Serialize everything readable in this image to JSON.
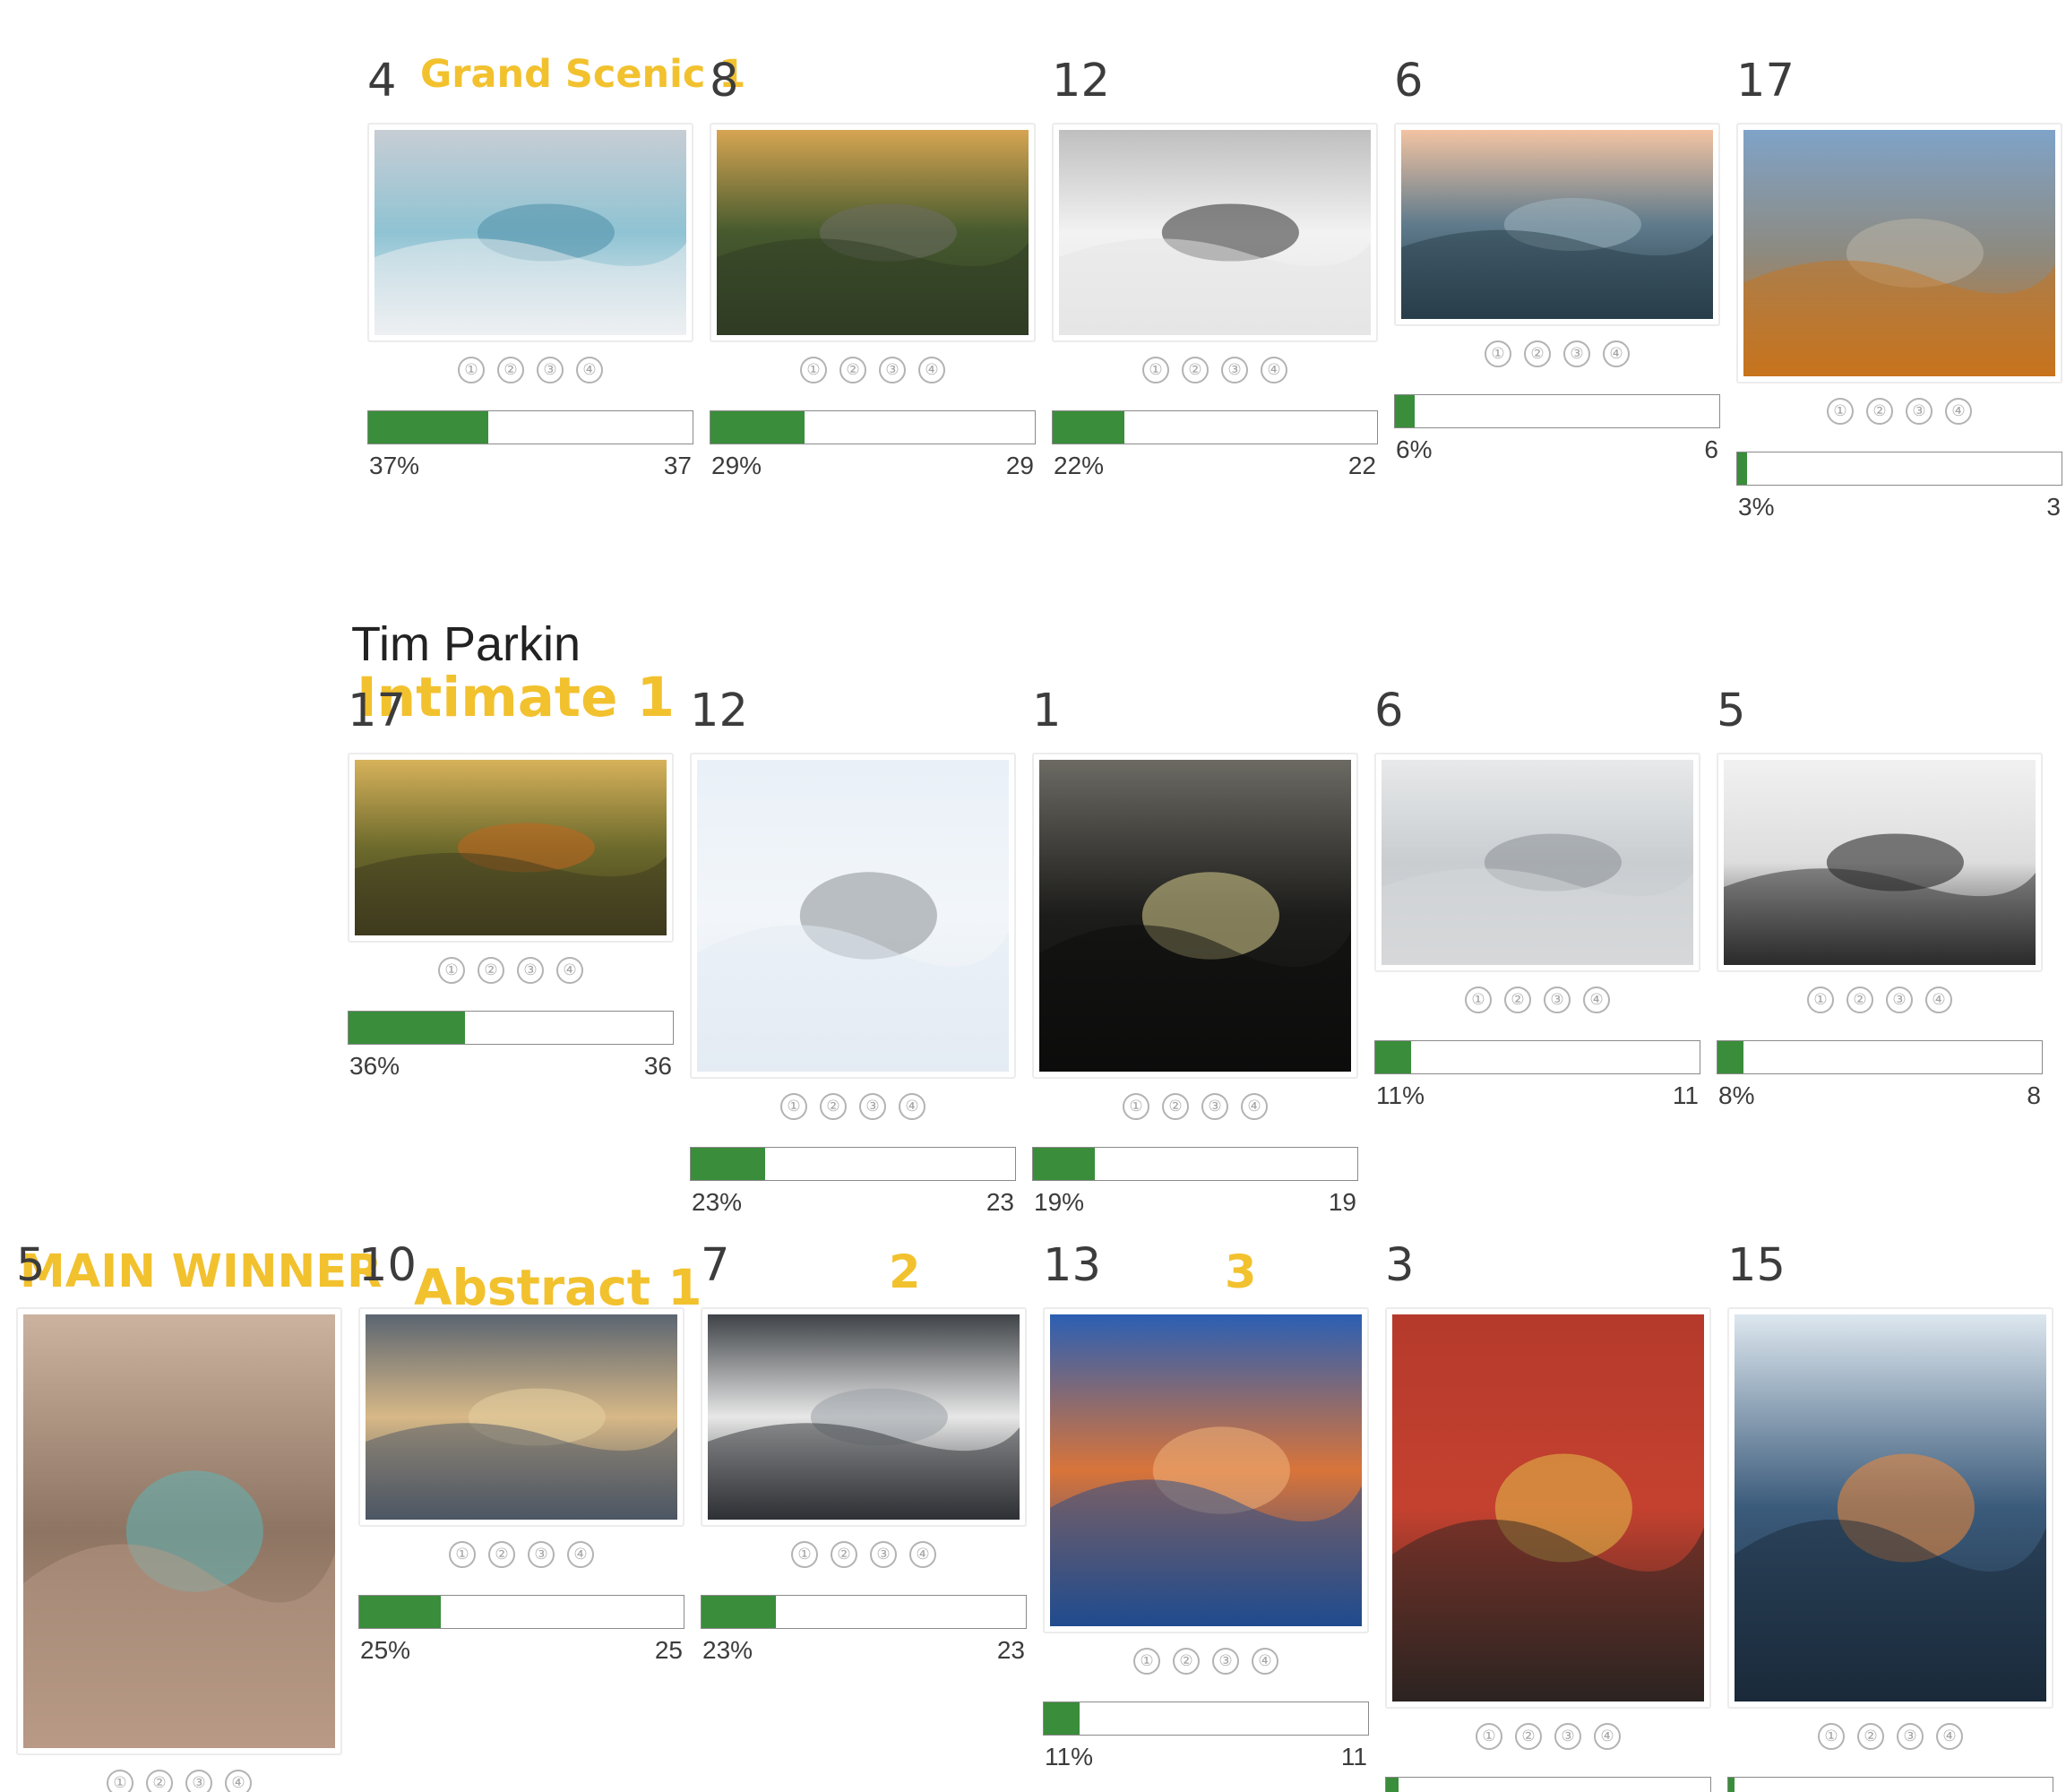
{
  "sections": [
    {
      "id": "grand-scenic",
      "award_label": "Grand Scenic 1",
      "photographer": "",
      "entries": [
        {
          "number": "4",
          "percent": "37%",
          "votes": "37",
          "share": 0.37,
          "photo": {
            "sky": "#c7cdd4",
            "mid": "#8fc3d3",
            "ground": "#eef0f2",
            "accent": "#4d8ea8",
            "caption": "glacier ice"
          }
        },
        {
          "number": "8",
          "percent": "29%",
          "votes": "29",
          "share": 0.29,
          "photo": {
            "sky": "#d6a552",
            "mid": "#465a2e",
            "ground": "#2f3b24",
            "accent": "#6e6e64",
            "caption": "mountain sunrise"
          }
        },
        {
          "number": "12",
          "percent": "22%",
          "votes": "22",
          "share": 0.22,
          "photo": {
            "sky": "#bfbfbf",
            "mid": "#f2f2f2",
            "ground": "#e6e6e6",
            "accent": "#2e2e2e",
            "caption": "snow valley"
          }
        },
        {
          "number": "6",
          "percent": "6%",
          "votes": "6",
          "share": 0.06,
          "photo": {
            "sky": "#f3c3a2",
            "mid": "#5f7b8c",
            "ground": "#283d4a",
            "accent": "#9fb4c0",
            "caption": "misty ridges"
          }
        },
        {
          "number": "17",
          "percent": "3%",
          "votes": "3",
          "share": 0.03,
          "photo": {
            "sky": "#7fa3c8",
            "mid": "#8d8a80",
            "ground": "#c7731c",
            "accent": "#b9b4a8",
            "caption": "rock pillars"
          }
        }
      ]
    },
    {
      "id": "intimate",
      "award_label": "Intimate 1",
      "photographer": "Tim Parkin",
      "entries": [
        {
          "number": "17",
          "percent": "36%",
          "votes": "36",
          "share": 0.36,
          "photo": {
            "sky": "#d7b25b",
            "mid": "#6d6a2c",
            "ground": "#3e3a1e",
            "accent": "#c2661e",
            "caption": "forest"
          }
        },
        {
          "number": "12",
          "percent": "23%",
          "votes": "23",
          "share": 0.23,
          "photo": {
            "sky": "#e9f0f7",
            "mid": "#f2f6fa",
            "ground": "#e4ebf3",
            "accent": "#8a8f96",
            "caption": "lone tree in snow"
          }
        },
        {
          "number": "1",
          "percent": "19%",
          "votes": "19",
          "share": 0.19,
          "photo": {
            "sky": "#6c6a63",
            "mid": "#1c1c1a",
            "ground": "#0c0c0b",
            "accent": "#d9cf8e",
            "caption": "lily pads"
          }
        },
        {
          "number": "6",
          "percent": "11%",
          "votes": "11",
          "share": 0.11,
          "photo": {
            "sky": "#e7e9ea",
            "mid": "#c9cdd0",
            "ground": "#d6d8da",
            "accent": "#8a8f95",
            "caption": "frosted tree"
          }
        },
        {
          "number": "5",
          "percent": "8%",
          "votes": "8",
          "share": 0.08,
          "photo": {
            "sky": "#f1f1f1",
            "mid": "#dddddd",
            "ground": "#2a2a2a",
            "accent": "#1b1b1b",
            "caption": "branches in fog"
          }
        }
      ]
    },
    {
      "id": "abstract",
      "award_label": "Abstract 1",
      "main_winner_label": "MAIN WINNER",
      "photographer": "",
      "entries": [
        {
          "number": "5",
          "percent": "",
          "votes": "",
          "share": null,
          "award": "MAIN WINNER",
          "photo": {
            "sky": "#cbb3a0",
            "mid": "#8e7462",
            "ground": "#b89a86",
            "accent": "#5fb5b7",
            "caption": "slot canyon"
          }
        },
        {
          "number": "10",
          "percent": "25%",
          "votes": "25",
          "share": 0.25,
          "photo": {
            "sky": "#5b6571",
            "mid": "#d7b887",
            "ground": "#4c5663",
            "accent": "#e6cfa1",
            "caption": "waves of foam"
          }
        },
        {
          "number": "7",
          "percent": "23%",
          "votes": "23",
          "share": 0.23,
          "award": "2",
          "photo": {
            "sky": "#3f4347",
            "mid": "#e7e7e7",
            "ground": "#2d3034",
            "accent": "#9aa0a6",
            "caption": "ice shards"
          }
        },
        {
          "number": "13",
          "percent": "11%",
          "votes": "11",
          "share": 0.11,
          "award": "3",
          "photo": {
            "sky": "#2b5fb3",
            "mid": "#d8743a",
            "ground": "#1f4b8e",
            "accent": "#f0b27a",
            "caption": "water patterns"
          }
        },
        {
          "number": "3",
          "percent": "",
          "votes": "",
          "share": 0.04,
          "photo": {
            "sky": "#b53a2c",
            "mid": "#c5412f",
            "ground": "#2b2421",
            "accent": "#e3c04b",
            "caption": "yellow orb"
          }
        },
        {
          "number": "15",
          "percent": "",
          "votes": "",
          "share": 0.02,
          "photo": {
            "sky": "#dde7ef",
            "mid": "#3b5b7b",
            "ground": "#1a2a3a",
            "accent": "#f08a3a",
            "caption": "waterfall light"
          }
        }
      ]
    }
  ],
  "rating_options": [
    "①",
    "②",
    "③",
    "④"
  ],
  "colors": {
    "award": "#f2c12e",
    "bar_fill": "#3a8d3a",
    "bar_border": "#8a8a8a",
    "text": "#3c3c3c"
  }
}
